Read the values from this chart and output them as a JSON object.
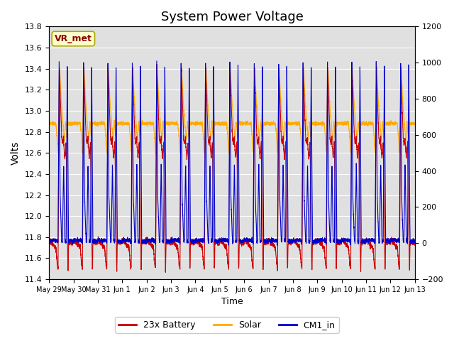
{
  "title": "System Power Voltage",
  "xlabel": "Time",
  "ylabel": "Volts",
  "ylim_left": [
    11.4,
    13.8
  ],
  "ylim_right": [
    -200,
    1200
  ],
  "yticks_left": [
    11.4,
    11.6,
    11.8,
    12.0,
    12.2,
    12.4,
    12.6,
    12.8,
    13.0,
    13.2,
    13.4,
    13.6,
    13.8
  ],
  "yticks_right": [
    -200,
    0,
    200,
    400,
    600,
    800,
    1000,
    1200
  ],
  "xtick_labels": [
    "May 29",
    "May 30",
    "May 31",
    "Jun 1",
    "Jun 2",
    "Jun 3",
    "Jun 4",
    "Jun 5",
    "Jun 6",
    "Jun 7",
    "Jun 8",
    "Jun 9",
    "Jun 10",
    "Jun 11",
    "Jun 12",
    "Jun 13"
  ],
  "n_days": 15,
  "color_battery": "#cc0000",
  "color_solar": "#ffaa00",
  "color_cm1": "#0000cc",
  "background_color": "#e0e0e0",
  "annotation_text": "VR_met",
  "annotation_bg": "#ffffcc",
  "annotation_border": "#aaaa00",
  "legend_labels": [
    "23x Battery",
    "Solar",
    "CM1_in"
  ],
  "title_fontsize": 13,
  "linewidth": 0.8
}
